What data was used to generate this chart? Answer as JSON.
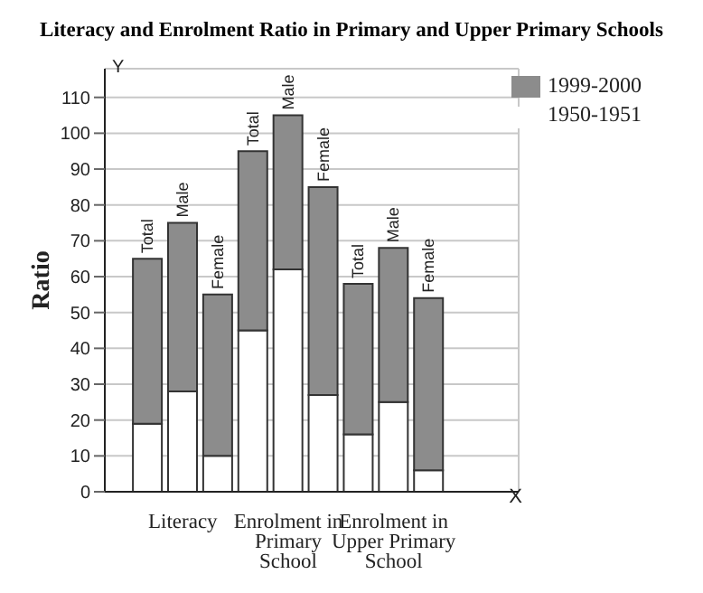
{
  "chart_data": {
    "type": "bar",
    "title": "Literacy and Enrolment Ratio in Primary and Upper Primary Schools",
    "xlabel": "X",
    "ylabel": "Ratio",
    "categories": [
      "Total",
      "Male",
      "Female",
      "Total",
      "Male",
      "Female",
      "Total",
      "Male",
      "Female"
    ],
    "stacked": true,
    "series": [
      {
        "name": "1950-1951",
        "color": "#ffffff",
        "values": [
          19,
          28,
          10,
          45,
          62,
          27,
          16,
          25,
          6
        ]
      },
      {
        "name": "1999-2000",
        "color": "#8c8c8c",
        "values": [
          46,
          47,
          45,
          50,
          43,
          58,
          42,
          43,
          48
        ]
      }
    ],
    "annotations": [
      "Literacy",
      "Enrolment in Primary School",
      "Enrolment in Upper Primary School",
      "Y"
    ],
    "ylim": [
      0,
      118
    ],
    "yticks": [
      0,
      10,
      20,
      30,
      40,
      50,
      60,
      70,
      80,
      90,
      100,
      110
    ],
    "grid": true,
    "legend": "top right"
  }
}
